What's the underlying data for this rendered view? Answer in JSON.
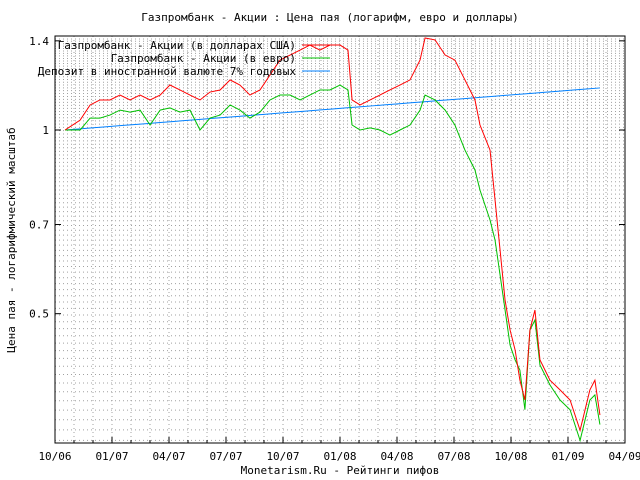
{
  "chart_data": {
    "type": "line",
    "title": "Газпромбанк - Акции : Цена пая (логарифм, евро и доллары)",
    "xlabel": "Monetarism.Ru - Рейтинги пифов",
    "ylabel": "Цена пая - логарифмический масштаб",
    "yscale": "log",
    "ylim": [
      0.307,
      1.43
    ],
    "xlim": [
      2006.75,
      2009.25
    ],
    "yticks": [
      {
        "value": 1.4,
        "label": "1.4"
      },
      {
        "value": 1,
        "label": "1"
      },
      {
        "value": 0.7,
        "label": "0.7"
      },
      {
        "value": 0.5,
        "label": "0.5"
      }
    ],
    "xticks": [
      {
        "value": 2006.75,
        "label": "10/06"
      },
      {
        "value": 2007.0,
        "label": "01/07"
      },
      {
        "value": 2007.25,
        "label": "04/07"
      },
      {
        "value": 2007.5,
        "label": "07/07"
      },
      {
        "value": 2007.75,
        "label": "10/07"
      },
      {
        "value": 2008.0,
        "label": "01/08"
      },
      {
        "value": 2008.25,
        "label": "04/08"
      },
      {
        "value": 2008.5,
        "label": "07/08"
      },
      {
        "value": 2008.75,
        "label": "10/08"
      },
      {
        "value": 2009.0,
        "label": "01/09"
      },
      {
        "value": 2009.25,
        "label": "04/09"
      }
    ],
    "grid": true,
    "legend_position": "top-left",
    "x": [
      2006.794,
      2006.86,
      2006.904,
      2006.947,
      2006.991,
      2007.035,
      2007.079,
      2007.123,
      2007.167,
      2007.211,
      2007.254,
      2007.298,
      2007.342,
      2007.386,
      2007.43,
      2007.474,
      2007.518,
      2007.561,
      2007.605,
      2007.649,
      2007.693,
      2007.737,
      2007.781,
      2007.825,
      2007.868,
      2007.912,
      2007.956,
      2008.0,
      2008.035,
      2008.053,
      2008.088,
      2008.132,
      2008.175,
      2008.219,
      2008.263,
      2008.307,
      2008.351,
      2008.373,
      2008.417,
      2008.461,
      2008.504,
      2008.548,
      2008.592,
      2008.614,
      2008.658,
      2008.68,
      2008.702,
      2008.724,
      2008.746,
      2008.768,
      2008.789,
      2008.811,
      2008.833,
      2008.855,
      2008.877,
      2008.921,
      2008.965,
      2009.009,
      2009.053,
      2009.096,
      2009.118,
      2009.14
    ],
    "series": [
      {
        "name": "Газпромбанк - Акции (в долларах США)",
        "color": "#ff0000",
        "values": [
          1.0,
          1.038,
          1.099,
          1.12,
          1.12,
          1.141,
          1.12,
          1.141,
          1.12,
          1.141,
          1.185,
          1.163,
          1.141,
          1.12,
          1.154,
          1.163,
          1.208,
          1.185,
          1.141,
          1.163,
          1.231,
          1.302,
          1.327,
          1.352,
          1.378,
          1.352,
          1.378,
          1.378,
          1.352,
          1.12,
          1.099,
          1.12,
          1.141,
          1.163,
          1.185,
          1.208,
          1.302,
          1.415,
          1.405,
          1.327,
          1.302,
          1.208,
          1.12,
          1.019,
          0.927,
          0.768,
          0.636,
          0.526,
          0.47,
          0.436,
          0.389,
          0.361,
          0.47,
          0.507,
          0.42,
          0.389,
          0.375,
          0.361,
          0.322,
          0.375,
          0.389,
          0.341
        ]
      },
      {
        "name": "Газпромбанк - Акции (в евро)",
        "color": "#00c000",
        "values": [
          1.0,
          1.0,
          1.046,
          1.046,
          1.058,
          1.078,
          1.07,
          1.078,
          1.019,
          1.078,
          1.087,
          1.07,
          1.078,
          1.0,
          1.046,
          1.058,
          1.099,
          1.078,
          1.046,
          1.07,
          1.12,
          1.141,
          1.141,
          1.12,
          1.141,
          1.163,
          1.163,
          1.185,
          1.163,
          1.019,
          1.0,
          1.008,
          1.0,
          0.981,
          1.0,
          1.019,
          1.078,
          1.141,
          1.12,
          1.078,
          1.019,
          0.927,
          0.86,
          0.797,
          0.712,
          0.66,
          0.579,
          0.507,
          0.444,
          0.42,
          0.404,
          0.348,
          0.47,
          0.488,
          0.412,
          0.382,
          0.361,
          0.348,
          0.31,
          0.361,
          0.368,
          0.329
        ]
      },
      {
        "name": "Депозит в иностранной валюте 7% годовых",
        "color": "#0080ff",
        "x": [
          2006.794,
          2009.14
        ],
        "values": [
          1.0,
          1.172
        ]
      }
    ]
  }
}
